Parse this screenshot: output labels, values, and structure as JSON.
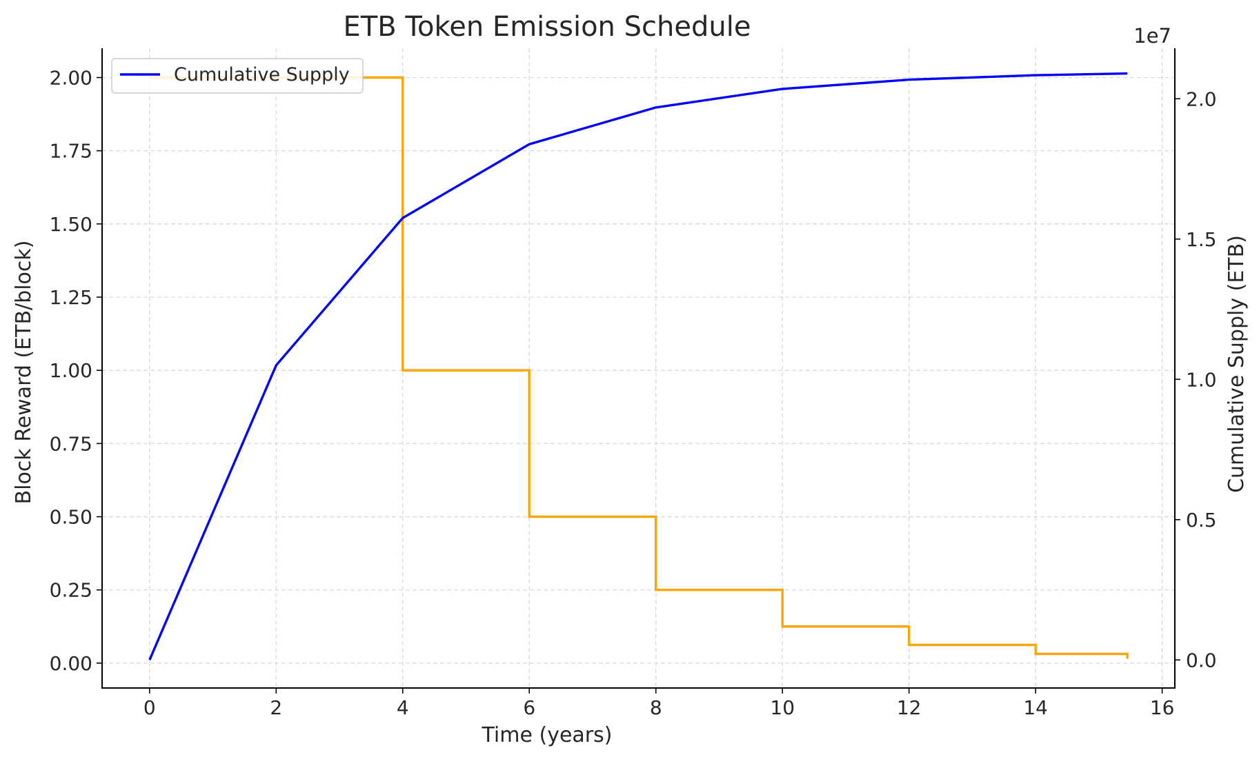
{
  "chart_data": {
    "type": "line",
    "title": "ETB Token Emission Schedule",
    "xlabel": "Time (years)",
    "ylabel": "Block Reward (ETB/block)",
    "y2label": "Cumulative Supply (ETB)",
    "y2_offset_label": "1e7",
    "xlim": [
      -0.75,
      16.2
    ],
    "ylim": [
      -0.085,
      2.1
    ],
    "y2lim": [
      -1000000,
      21800000
    ],
    "x_ticks": [
      0,
      2,
      4,
      6,
      8,
      10,
      12,
      14,
      16
    ],
    "x_tick_labels": [
      "0",
      "2",
      "4",
      "6",
      "8",
      "10",
      "12",
      "14",
      "16"
    ],
    "y_ticks": [
      0,
      0.25,
      0.5,
      0.75,
      1.0,
      1.25,
      1.5,
      1.75,
      2.0
    ],
    "y_tick_labels": [
      "0.00",
      "0.25",
      "0.50",
      "0.75",
      "1.00",
      "1.25",
      "1.50",
      "1.75",
      "2.00"
    ],
    "y2_ticks": [
      0,
      5000000,
      10000000,
      15000000,
      20000000
    ],
    "y2_tick_labels": [
      "0.0",
      "0.5",
      "1.0",
      "1.5",
      "2.0"
    ],
    "grid": true,
    "legend_position": "top-left",
    "series": [
      {
        "name": "Cumulative Supply",
        "axis": "right",
        "color": "#0000ff",
        "x": [
          0,
          2,
          4,
          6,
          8,
          10,
          12,
          14,
          15.45
        ],
        "y": [
          0,
          10500000,
          15750000,
          18380000,
          19690000,
          20350000,
          20680000,
          20840000,
          20900000
        ]
      },
      {
        "name": "",
        "axis": "left",
        "step": true,
        "color": "#ffa500",
        "x": [
          0,
          4,
          4,
          6,
          6,
          8,
          8,
          10,
          10,
          12,
          12,
          14,
          14,
          15.45,
          15.45
        ],
        "y": [
          2.0,
          2.0,
          1.0,
          1.0,
          0.5,
          0.5,
          0.25,
          0.25,
          0.125,
          0.125,
          0.0625,
          0.0625,
          0.03125,
          0.03125,
          0.015
        ]
      }
    ]
  }
}
